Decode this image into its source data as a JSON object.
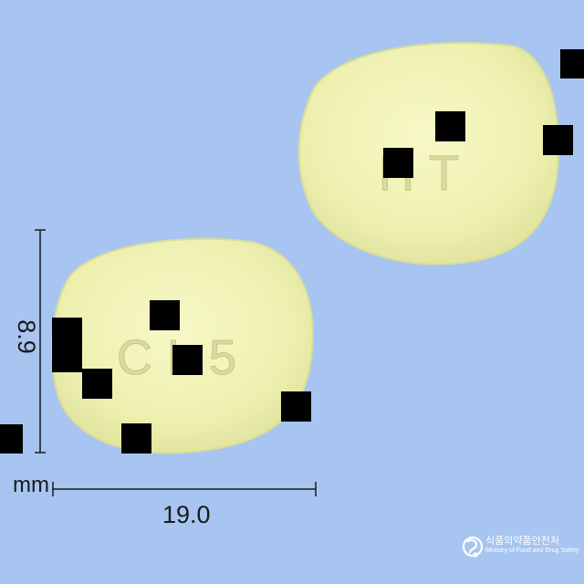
{
  "pills": {
    "front": {
      "imprint": "CL5"
    },
    "back": {
      "imprint": "HT"
    }
  },
  "dimensions": {
    "height": "8.9",
    "width": "19.0",
    "unit": "mm"
  },
  "logo": {
    "name_ko": "식품의약품안전처",
    "name_en": "Ministry of Food and Drug Safety"
  },
  "colors": {
    "background": "#a7c5f0",
    "pill": "#f0f2b5",
    "dimension_lines": "#1a1a1a",
    "redaction": "#000000"
  }
}
